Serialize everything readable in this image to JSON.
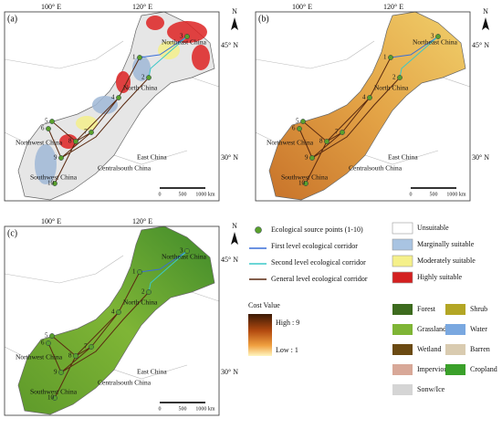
{
  "panels": [
    "(a)",
    "(b)",
    "(c)"
  ],
  "map_labels": {
    "lon": [
      "100° E",
      "120° E"
    ],
    "lat": [
      "45° N",
      "30° N"
    ],
    "north": "N",
    "regions": [
      "Northeast China",
      "North China",
      "Northwest China",
      "Southwest China",
      "Centralsouth China",
      "East China"
    ],
    "points": [
      "1",
      "2",
      "3",
      "4",
      "5",
      "6",
      "7",
      "8",
      "9",
      "10"
    ],
    "scale": [
      "0",
      "500",
      "1000 km"
    ]
  },
  "legend": {
    "corridors": [
      "Ecological source points (1-10)",
      "First level ecological corridor",
      "Second level ecological corridor",
      "General level ecological corridor"
    ],
    "cost": {
      "title": "Cost Value",
      "high": "High : 9",
      "low": "Low : 1"
    },
    "suitability": [
      "Unsuitable",
      "Marginally suitable",
      "Moderately suitable",
      "Highly suitable"
    ],
    "landcover": [
      "Forest",
      "Shrub",
      "Grassland",
      "Water",
      "Wetland",
      "Barren",
      "Impervious",
      "Cropland",
      "Sonw/Ice"
    ]
  }
}
